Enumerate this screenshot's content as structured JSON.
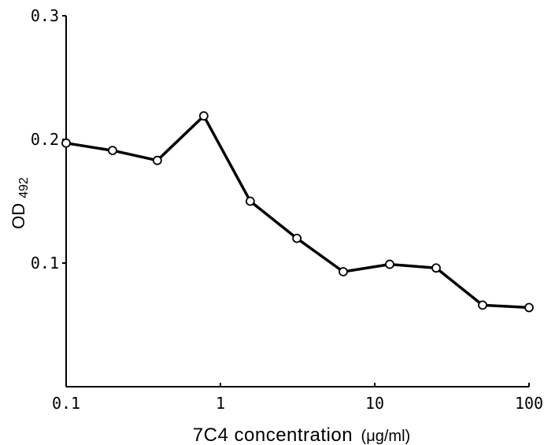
{
  "chart_data": {
    "type": "line",
    "title": "",
    "xlabel": "7C4 concentration (μg/ml)",
    "xlabel_parts": {
      "main": "7C4 concentration",
      "unit": "(μg/ml)"
    },
    "ylabel": "OD492",
    "ylabel_parts": {
      "main": "OD",
      "sub": "492"
    },
    "x_scale": "log",
    "xlim": [
      0.1,
      100
    ],
    "ylim": [
      0.0,
      0.3
    ],
    "x_ticks": [
      0.1,
      1,
      10,
      100
    ],
    "x_tick_labels": [
      "0.1",
      "1",
      "10",
      "100"
    ],
    "y_ticks": [
      0.1,
      0.2,
      0.3
    ],
    "y_tick_labels": [
      "0.1",
      "0.2",
      "0.3"
    ],
    "grid": false,
    "legend": "none",
    "series": [
      {
        "x": [
          0.1,
          0.2,
          0.39,
          0.78,
          1.56,
          3.13,
          6.25,
          12.5,
          25,
          50,
          100
        ],
        "y": [
          0.197,
          0.191,
          0.183,
          0.219,
          0.15,
          0.12,
          0.093,
          0.099,
          0.096,
          0.066,
          0.064
        ],
        "marker": "open-circle",
        "color": "#000000"
      }
    ]
  }
}
